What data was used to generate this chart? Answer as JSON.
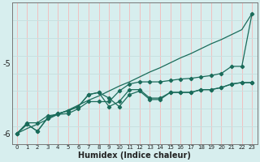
{
  "xlabel": "Humidex (Indice chaleur)",
  "x_values": [
    0,
    1,
    2,
    3,
    4,
    5,
    6,
    7,
    8,
    9,
    10,
    11,
    12,
    13,
    14,
    15,
    16,
    17,
    18,
    19,
    20,
    21,
    22,
    23
  ],
  "line_straight": [
    -6.0,
    -5.93,
    -5.87,
    -5.8,
    -5.73,
    -5.67,
    -5.6,
    -5.53,
    -5.47,
    -5.4,
    -5.33,
    -5.27,
    -5.2,
    -5.13,
    -5.07,
    -5.0,
    -4.93,
    -4.87,
    -4.8,
    -4.73,
    -4.67,
    -4.6,
    -4.53,
    -4.3
  ],
  "line_upper": [
    -6.0,
    -5.85,
    -5.85,
    -5.75,
    -5.73,
    -5.72,
    -5.65,
    -5.55,
    -5.55,
    -5.55,
    -5.4,
    -5.3,
    -5.27,
    -5.27,
    -5.27,
    -5.25,
    -5.23,
    -5.22,
    -5.2,
    -5.18,
    -5.15,
    -5.05,
    -5.05,
    -4.3
  ],
  "line_mid": [
    -6.0,
    -5.87,
    -5.97,
    -5.78,
    -5.72,
    -5.68,
    -5.62,
    -5.45,
    -5.42,
    -5.62,
    -5.55,
    -5.38,
    -5.38,
    -5.5,
    -5.5,
    -5.42,
    -5.42,
    -5.42,
    -5.38,
    -5.38,
    -5.35,
    -5.3,
    -5.28,
    -5.28
  ],
  "line_lower": [
    -6.0,
    -5.87,
    -5.97,
    -5.78,
    -5.72,
    -5.68,
    -5.62,
    -5.45,
    -5.42,
    -5.5,
    -5.62,
    -5.45,
    -5.4,
    -5.52,
    -5.52,
    -5.42,
    -5.42,
    -5.42,
    -5.38,
    -5.38,
    -5.35,
    -5.3,
    -5.28,
    -5.28
  ],
  "ylim": [
    -6.15,
    -4.15
  ],
  "yticks": [
    -6,
    -5
  ],
  "bg_color": "#d7eeee",
  "grid_color_v": "#f0c0c0",
  "grid_color_h": "#c8e0e0",
  "line_color": "#1a6b5a",
  "marker": "D",
  "marker_size": 2.2
}
